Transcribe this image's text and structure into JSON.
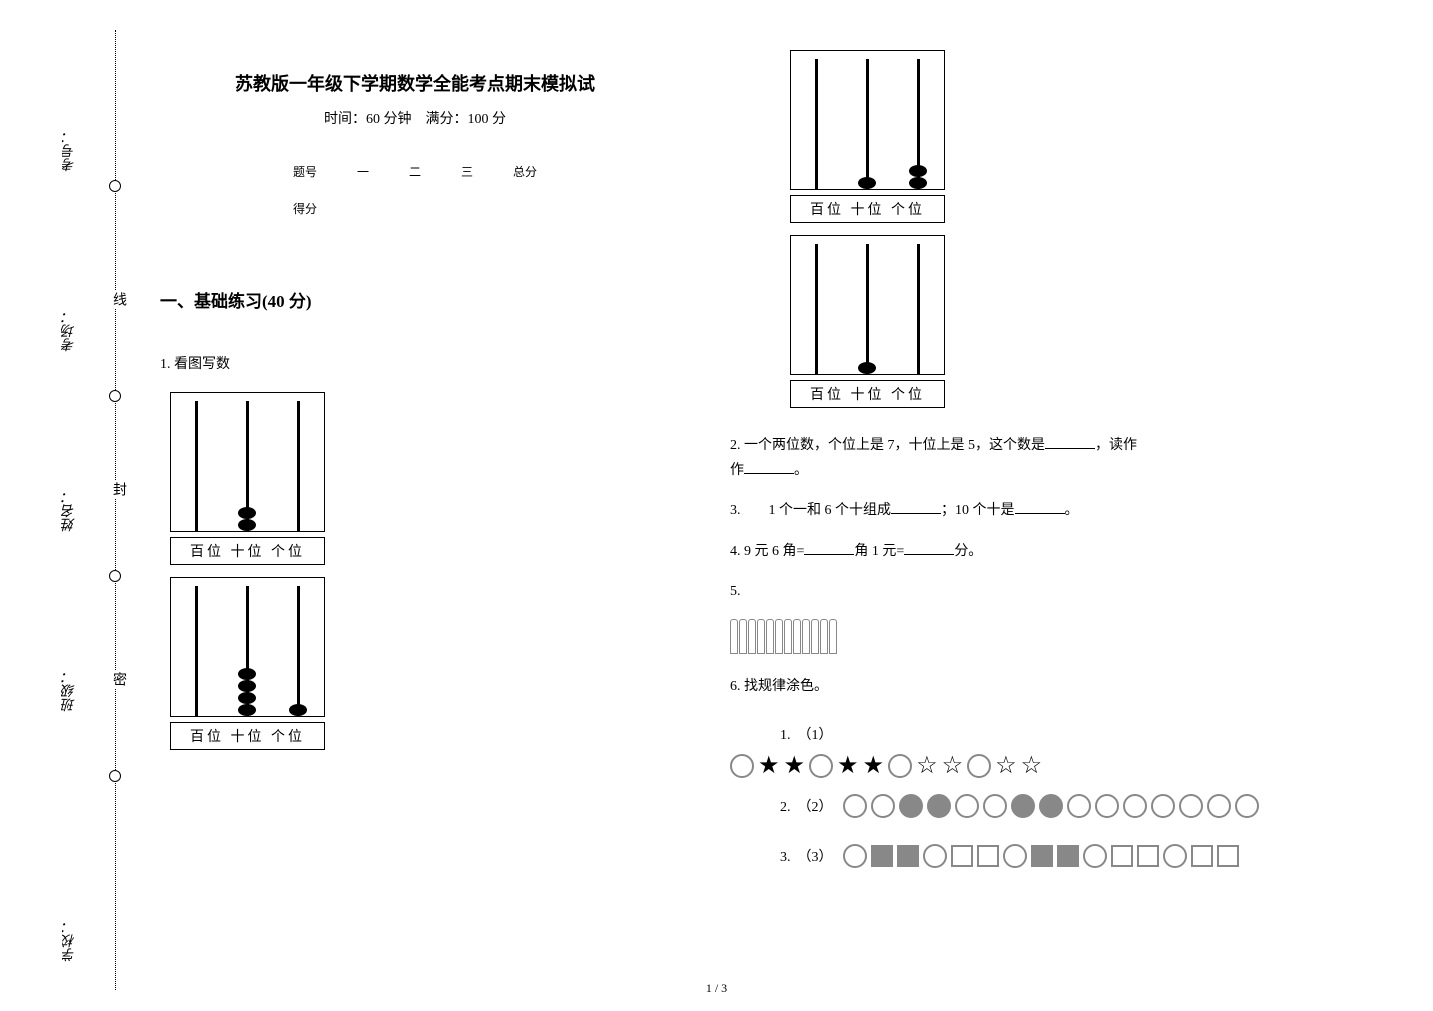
{
  "binding": {
    "labels": [
      "考号：",
      "考场：",
      "姓名：",
      "班级：",
      "学校："
    ],
    "chars": [
      "线",
      "封",
      "密"
    ]
  },
  "header": {
    "title": "苏教版一年级下学期数学全能考点期末模拟试",
    "subtitle": "时间：60 分钟　满分：100 分"
  },
  "score_table": {
    "row1": [
      "题号",
      "一",
      "二",
      "三",
      "总分"
    ],
    "row2": [
      "得分",
      "",
      "",
      "",
      ""
    ]
  },
  "section1": {
    "header": "一、基础练习(40 分)",
    "q1": {
      "label": "1.  看图写数",
      "place_labels": "百位 十位 个位",
      "abacus": [
        {
          "hundreds": 0,
          "tens": 2,
          "ones": 0
        },
        {
          "hundreds": 0,
          "tens": 4,
          "ones": 1
        },
        {
          "hundreds": 0,
          "tens": 1,
          "ones": 2
        },
        {
          "hundreds": 0,
          "tens": 1,
          "ones": 0
        }
      ]
    },
    "q2": {
      "text_before": "2.  一个两位数，个位上是 7，十位上是 5，这个数是",
      "text_mid": "，读作",
      "text_after": "。"
    },
    "q3": {
      "text_before": "3.　　1 个一和 6 个十组成",
      "text_mid": "；10 个十是",
      "text_after": "。"
    },
    "q4": {
      "text_before": "4.  9 元 6 角=",
      "text_mid": "角  1 元=",
      "text_after": "分。"
    },
    "q5": {
      "label": "5.",
      "book_count": 12
    },
    "q6": {
      "label": "6.  找规律涂色。",
      "sub1": "1.　（1）",
      "sub2": "2.　（2）",
      "sub3": "3.　（3）",
      "pattern1": [
        "circle-o",
        "star-f",
        "star-f",
        "circle-o",
        "star-f",
        "star-f",
        "circle-o",
        "star-o",
        "star-o",
        "circle-o",
        "star-o",
        "star-o"
      ],
      "pattern2": [
        "circle-o",
        "circle-o",
        "circle-f",
        "circle-f",
        "circle-o",
        "circle-o",
        "circle-f",
        "circle-f",
        "circle-o",
        "circle-o",
        "circle-o",
        "circle-o",
        "circle-o",
        "circle-o",
        "circle-o"
      ],
      "pattern3": [
        "circle-o",
        "square-f",
        "square-f",
        "circle-o",
        "square-o",
        "square-o",
        "circle-o",
        "square-f",
        "square-f",
        "circle-o",
        "square-o",
        "square-o",
        "circle-o",
        "square-o",
        "square-o"
      ]
    }
  },
  "footer": {
    "page_num": "1 / 3"
  },
  "style": {
    "bg": "#ffffff",
    "text_color": "#000000",
    "shape_gray": "#888888",
    "title_fontsize": 18,
    "body_fontsize": 14
  }
}
